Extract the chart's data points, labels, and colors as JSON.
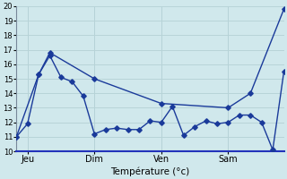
{
  "background_color": "#d0e8ec",
  "grid_color": "#b8d4d8",
  "line_color": "#1a3a9a",
  "xlabel": "Température (°c)",
  "ylim": [
    10,
    20
  ],
  "yticks": [
    10,
    11,
    12,
    13,
    14,
    15,
    16,
    17,
    18,
    19,
    20
  ],
  "xlim": [
    0,
    24
  ],
  "day_ticks": [
    1,
    7,
    13,
    19
  ],
  "day_labels": [
    "Jeu",
    "Dim",
    "Ven",
    "Sam"
  ],
  "vline_x": [
    1,
    7,
    13,
    19
  ],
  "upper_x": [
    0,
    2,
    3,
    7,
    13,
    19,
    21,
    24
  ],
  "upper_y": [
    11.0,
    15.3,
    16.8,
    15.0,
    13.3,
    13.0,
    14.0,
    19.8
  ],
  "lower_x": [
    0,
    1,
    2,
    3,
    4,
    5,
    6,
    7,
    8,
    9,
    10,
    11,
    12,
    13,
    14,
    15,
    16,
    17,
    18,
    19,
    20,
    21,
    22,
    23,
    24
  ],
  "lower_y": [
    11.0,
    11.9,
    15.3,
    16.6,
    15.1,
    14.8,
    13.8,
    11.2,
    11.5,
    11.6,
    11.5,
    11.5,
    12.1,
    12.0,
    13.1,
    11.1,
    11.7,
    12.1,
    11.9,
    12.0,
    12.5,
    12.5,
    12.0,
    10.1,
    15.5
  ]
}
